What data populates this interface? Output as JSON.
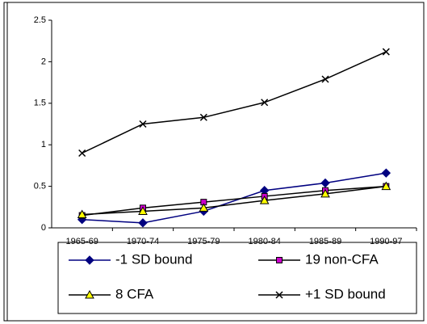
{
  "chart_data": {
    "type": "line",
    "categories": [
      "1965-69",
      "1970-74",
      "1975-79",
      "1980-84",
      "1985-89",
      "1990-97"
    ],
    "series": [
      {
        "name": "-1 SD bound",
        "color": "#000080",
        "marker": "diamond",
        "marker_color": "#000080",
        "values": [
          0.1,
          0.06,
          0.2,
          0.45,
          0.54,
          0.66
        ]
      },
      {
        "name": "19 non-CFA",
        "color": "#000000",
        "marker": "square",
        "marker_color": "#cc00cc",
        "values": [
          0.15,
          0.24,
          0.31,
          0.38,
          0.45,
          0.5
        ]
      },
      {
        "name": "8 CFA",
        "color": "#000000",
        "marker": "triangle",
        "marker_color": "#ffff00",
        "values": [
          0.16,
          0.2,
          0.24,
          0.33,
          0.41,
          0.5
        ]
      },
      {
        "name": "+1 SD bound",
        "color": "#000000",
        "marker": "x",
        "marker_color": "#000000",
        "values": [
          0.9,
          1.25,
          1.33,
          1.51,
          1.79,
          2.12
        ]
      }
    ],
    "ylim": [
      0,
      2.5
    ],
    "yticks": [
      0,
      0.5,
      1,
      1.5,
      2,
      2.5
    ],
    "grid": false
  }
}
